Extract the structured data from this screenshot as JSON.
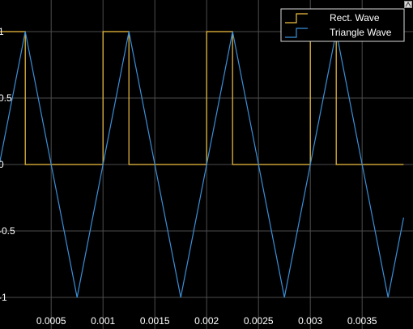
{
  "chart_data": {
    "type": "line",
    "title": "",
    "xlabel": "",
    "ylabel": "",
    "xlim": [
      0,
      0.0039
    ],
    "ylim": [
      -1.05,
      1.05
    ],
    "grid": true,
    "legend_position": "top-right",
    "background": "#000000",
    "grid_color": "#4d4d4d",
    "x_ticks": [
      {
        "value": 0.0005,
        "label": "0.0005"
      },
      {
        "value": 0.001,
        "label": "0.001"
      },
      {
        "value": 0.0015,
        "label": "0.0015"
      },
      {
        "value": 0.002,
        "label": "0.002"
      },
      {
        "value": 0.0025,
        "label": "0.0025"
      },
      {
        "value": 0.003,
        "label": "0.003"
      },
      {
        "value": 0.0035,
        "label": "0.0035"
      }
    ],
    "y_ticks": [
      {
        "value": 1,
        "label": "1"
      },
      {
        "value": 0.5,
        "label": "0.5"
      },
      {
        "value": 0,
        "label": "0"
      },
      {
        "value": -0.5,
        "label": "-0.5"
      },
      {
        "value": -1,
        "label": "-1"
      }
    ],
    "series": [
      {
        "name": "Rect. Wave",
        "color": "#f0c040",
        "x": [
          0,
          0.00025,
          0.00025,
          0.001,
          0.001,
          0.00125,
          0.00125,
          0.002,
          0.002,
          0.00225,
          0.00225,
          0.003,
          0.003,
          0.00325,
          0.00325,
          0.0039
        ],
        "y": [
          1,
          1,
          0,
          0,
          1,
          1,
          0,
          0,
          1,
          1,
          0,
          0,
          1,
          1,
          0,
          0
        ]
      },
      {
        "name": "Triangle Wave",
        "color": "#3a8fd8",
        "x": [
          0,
          0.00025,
          0.00075,
          0.00125,
          0.00175,
          0.00225,
          0.00275,
          0.00325,
          0.00375,
          0.0039
        ],
        "y": [
          0,
          1,
          -1,
          1,
          -1,
          1,
          -1,
          1,
          -1,
          -0.4
        ]
      }
    ]
  },
  "icons": {
    "corner_button": "expand-icon"
  }
}
